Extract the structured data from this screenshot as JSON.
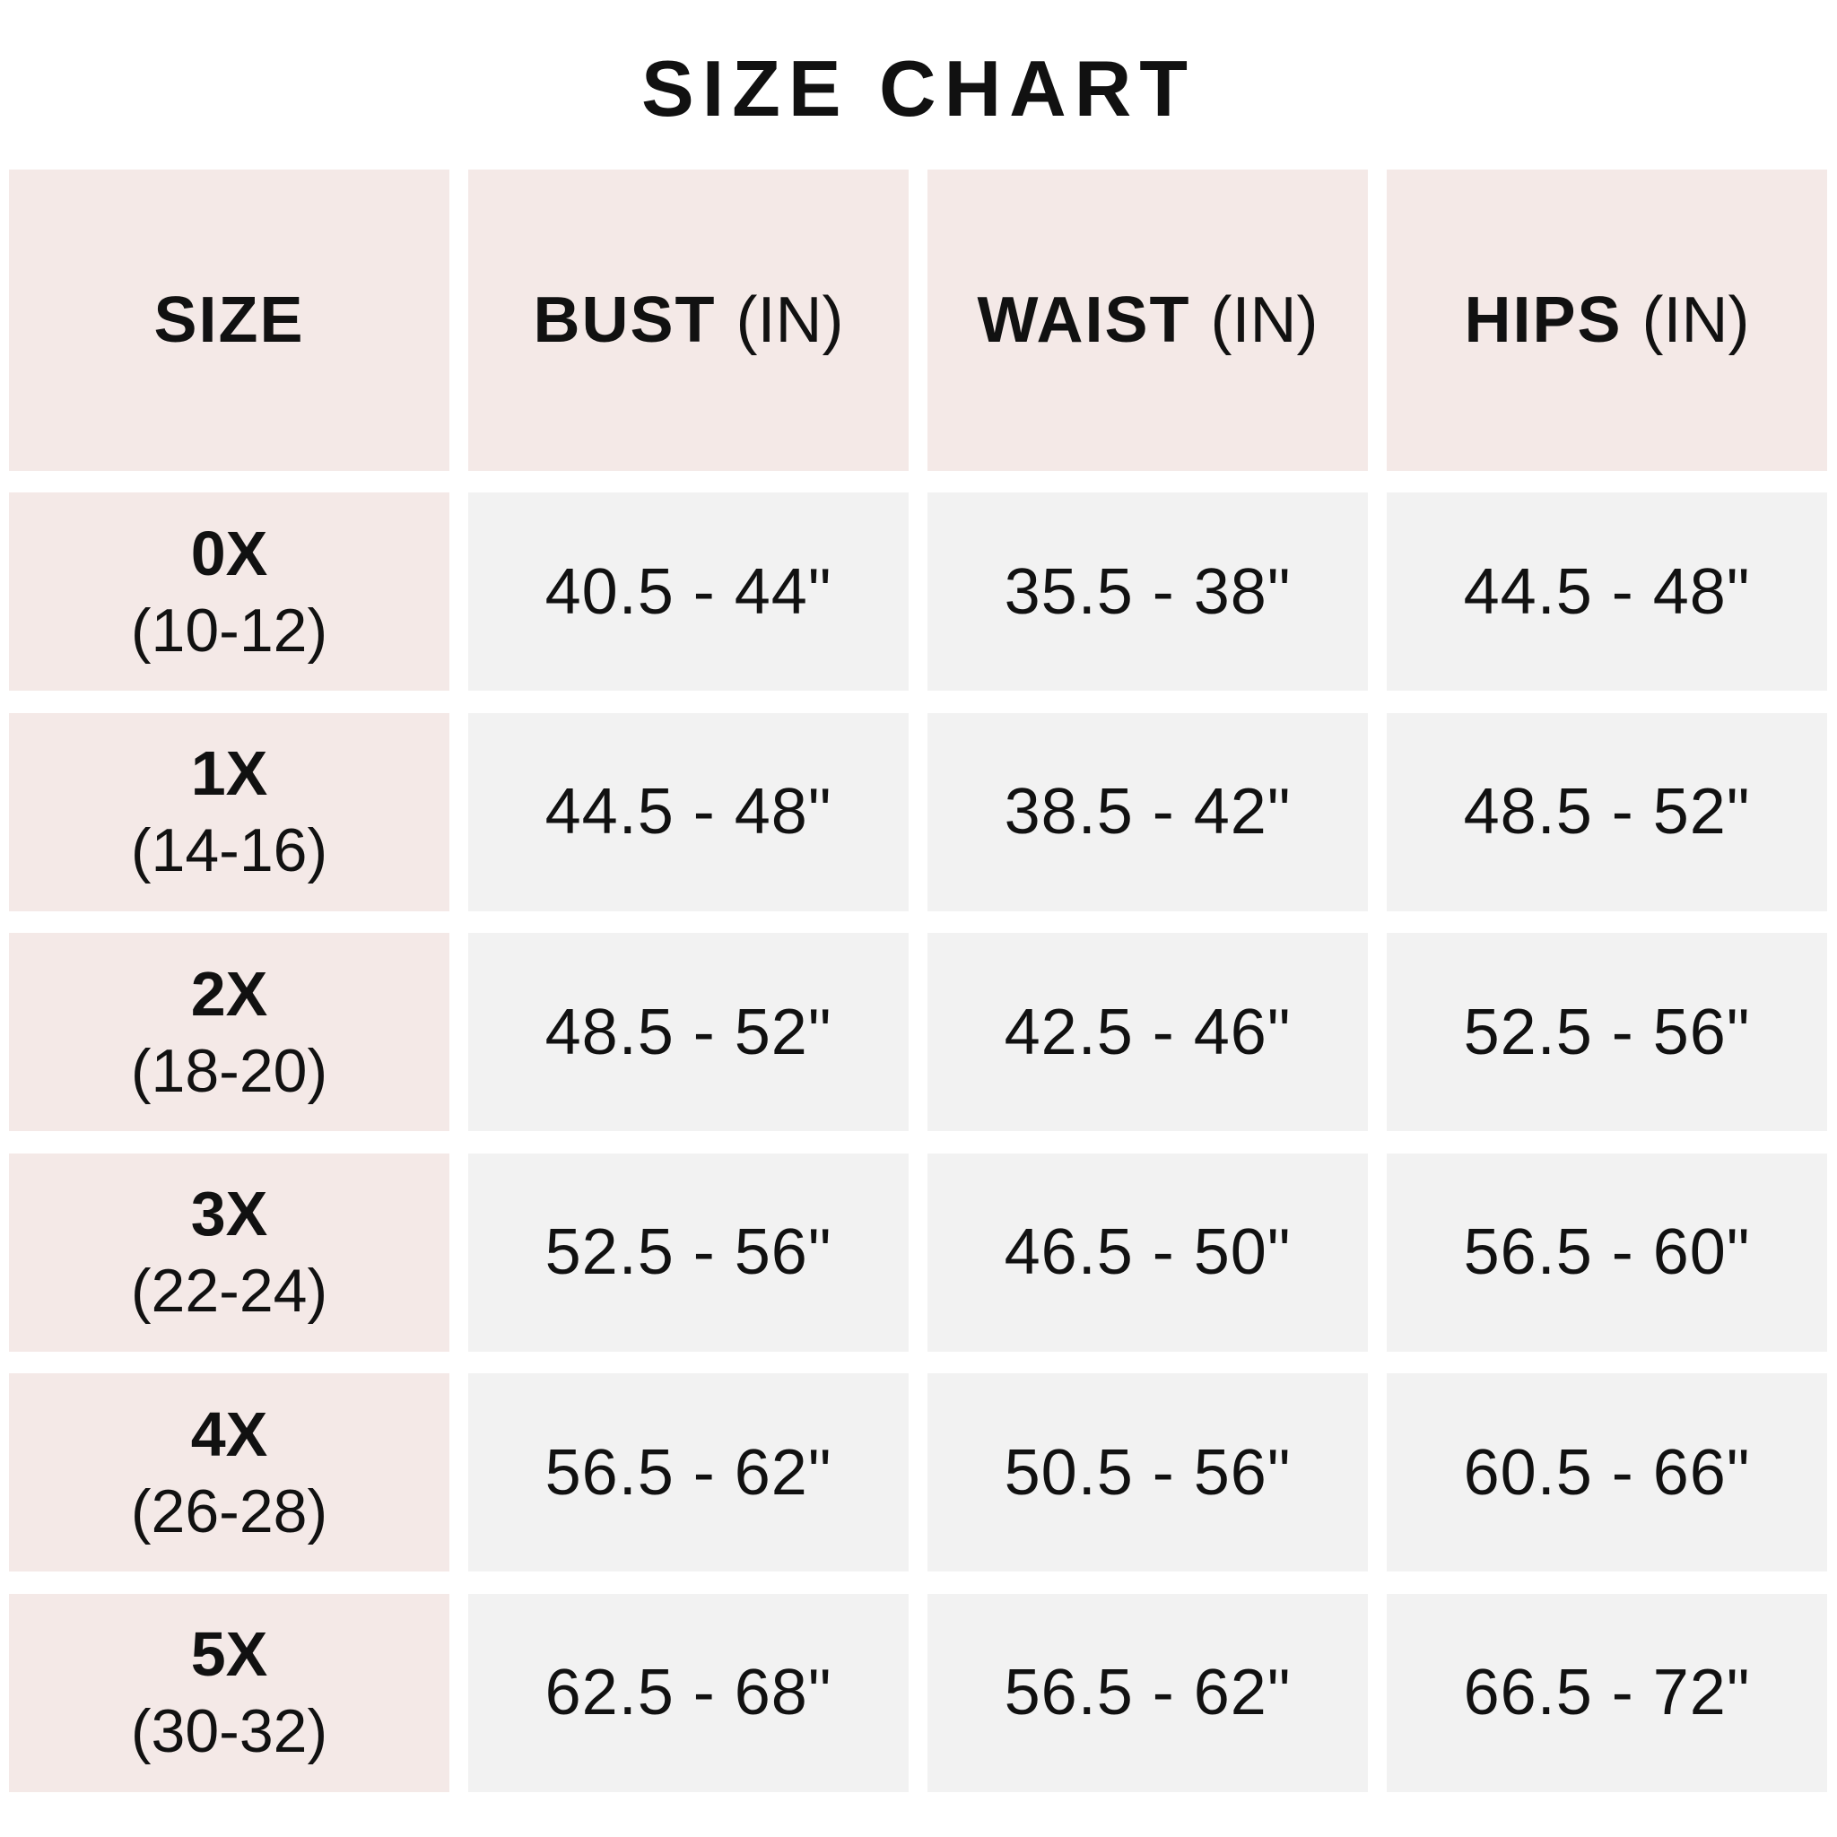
{
  "title": "SIZE CHART",
  "colors": {
    "header_bg": "#f4e9e7",
    "size_col_bg": "#f4e9e7",
    "value_bg": "#f2f2f2",
    "text": "#111111"
  },
  "headers": [
    {
      "label": "SIZE",
      "unit": ""
    },
    {
      "label": "BUST",
      "unit": "(IN)"
    },
    {
      "label": "WAIST",
      "unit": "(IN)"
    },
    {
      "label": "HIPS",
      "unit": "(IN)"
    }
  ],
  "rows": [
    {
      "size": "0X",
      "range": "(10-12)",
      "bust": "40.5 - 44\"",
      "waist": "35.5 - 38\"",
      "hips": "44.5 - 48\""
    },
    {
      "size": "1X",
      "range": "(14-16)",
      "bust": "44.5 - 48\"",
      "waist": "38.5 - 42\"",
      "hips": "48.5 - 52\""
    },
    {
      "size": "2X",
      "range": "(18-20)",
      "bust": "48.5 - 52\"",
      "waist": "42.5 - 46\"",
      "hips": "52.5 - 56\""
    },
    {
      "size": "3X",
      "range": "(22-24)",
      "bust": "52.5 - 56\"",
      "waist": "46.5 - 50\"",
      "hips": "56.5 - 60\""
    },
    {
      "size": "4X",
      "range": "(26-28)",
      "bust": "56.5 - 62\"",
      "waist": "50.5 - 56\"",
      "hips": "60.5 - 66\""
    },
    {
      "size": "5X",
      "range": "(30-32)",
      "bust": "62.5 - 68\"",
      "waist": "56.5 - 62\"",
      "hips": "66.5 - 72\""
    }
  ]
}
